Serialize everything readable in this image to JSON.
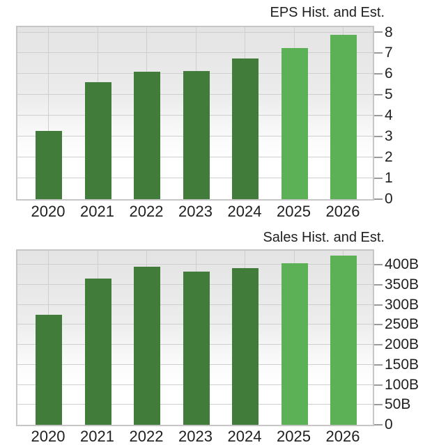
{
  "colors": {
    "historical_bar": "#417c3a",
    "estimate_bar": "#5cb156",
    "grid_line": "#cfcfcf",
    "plot_border": "#c6c6c6",
    "plot_bg_top": "#e4e4e4",
    "axis_text": "#1f1f1f",
    "tick_mark": "#9a9a9a",
    "background": "#ffffff"
  },
  "chart_data": [
    {
      "type": "bar",
      "title": "EPS Hist. and Est.",
      "categories": [
        "2020",
        "2021",
        "2022",
        "2023",
        "2024",
        "2025",
        "2026"
      ],
      "values": [
        3.28,
        5.61,
        6.11,
        6.13,
        6.75,
        7.26,
        7.87
      ],
      "estimate_from": "2025",
      "historical_years": [
        "2020",
        "2021",
        "2022",
        "2023",
        "2024"
      ],
      "estimate_years": [
        "2025",
        "2026"
      ],
      "xlabel": "",
      "ylabel": "",
      "y_axis_side": "right",
      "ylim": [
        0,
        8.25
      ],
      "y_ticks": [
        {
          "v": 0,
          "label": "0"
        },
        {
          "v": 1,
          "label": "1"
        },
        {
          "v": 2,
          "label": "2"
        },
        {
          "v": 3,
          "label": "3"
        },
        {
          "v": 4,
          "label": "4"
        },
        {
          "v": 5,
          "label": "5"
        },
        {
          "v": 6,
          "label": "6"
        },
        {
          "v": 7,
          "label": "7"
        },
        {
          "v": 8,
          "label": "8"
        }
      ],
      "grid": true,
      "legend": "none"
    },
    {
      "type": "bar",
      "title": "Sales Hist. and Est.",
      "categories": [
        "2020",
        "2021",
        "2022",
        "2023",
        "2024",
        "2025",
        "2026"
      ],
      "values": [
        274.5,
        365.8,
        394.3,
        383.3,
        391.0,
        404.0,
        422.0
      ],
      "values_unit": "billions",
      "estimate_from": "2025",
      "historical_years": [
        "2020",
        "2021",
        "2022",
        "2023",
        "2024"
      ],
      "estimate_years": [
        "2025",
        "2026"
      ],
      "xlabel": "",
      "ylabel": "",
      "y_axis_side": "right",
      "ylim": [
        0,
        435
      ],
      "y_ticks": [
        {
          "v": 0,
          "label": "0"
        },
        {
          "v": 50,
          "label": "50B"
        },
        {
          "v": 100,
          "label": "100B"
        },
        {
          "v": 150,
          "label": "150B"
        },
        {
          "v": 200,
          "label": "200B"
        },
        {
          "v": 250,
          "label": "250B"
        },
        {
          "v": 300,
          "label": "300B"
        },
        {
          "v": 350,
          "label": "350B"
        },
        {
          "v": 400,
          "label": "400B"
        }
      ],
      "grid": true,
      "legend": "none"
    }
  ]
}
